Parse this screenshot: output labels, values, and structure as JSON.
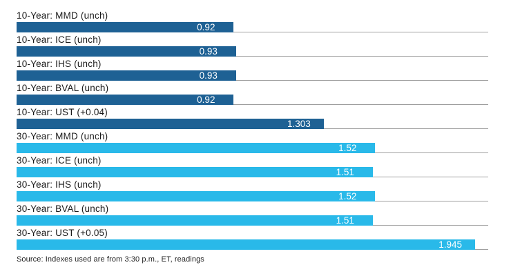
{
  "chart_data": {
    "type": "bar",
    "orientation": "horizontal",
    "title": "",
    "xlabel": "",
    "ylabel": "",
    "xlim": [
      0,
      2.0
    ],
    "grid": "row-baselines",
    "legend": "none",
    "colors": {
      "10-year": "#1E6194",
      "30-year": "#29B9E9",
      "gridline": "#9e9e9e",
      "label_text": "#1a1a1a",
      "value_text": "#ffffff"
    },
    "rows": [
      {
        "label": "10-Year: MMD (unch)",
        "value": 0.92,
        "display": "0.92",
        "series": "10-year"
      },
      {
        "label": "10-Year: ICE (unch)",
        "value": 0.93,
        "display": "0.93",
        "series": "10-year"
      },
      {
        "label": "10-Year: IHS (unch)",
        "value": 0.93,
        "display": "0.93",
        "series": "10-year"
      },
      {
        "label": "10-Year: BVAL (unch)",
        "value": 0.92,
        "display": "0.92",
        "series": "10-year"
      },
      {
        "label": "10-Year: UST (+0.04)",
        "value": 1.303,
        "display": "1.303",
        "series": "10-year"
      },
      {
        "label": "30-Year: MMD (unch)",
        "value": 1.52,
        "display": "1.52",
        "series": "30-year"
      },
      {
        "label": "30-Year: ICE (unch)",
        "value": 1.51,
        "display": "1.51",
        "series": "30-year"
      },
      {
        "label": "30-Year: IHS (unch)",
        "value": 1.52,
        "display": "1.52",
        "series": "30-year"
      },
      {
        "label": "30-Year: BVAL (unch)",
        "value": 1.51,
        "display": "1.51",
        "series": "30-year"
      },
      {
        "label": "30-Year: UST (+0.05)",
        "value": 1.945,
        "display": "1.945",
        "series": "30-year"
      }
    ],
    "source": "Source: Indexes used are from 3:30 p.m., ET, readings"
  }
}
